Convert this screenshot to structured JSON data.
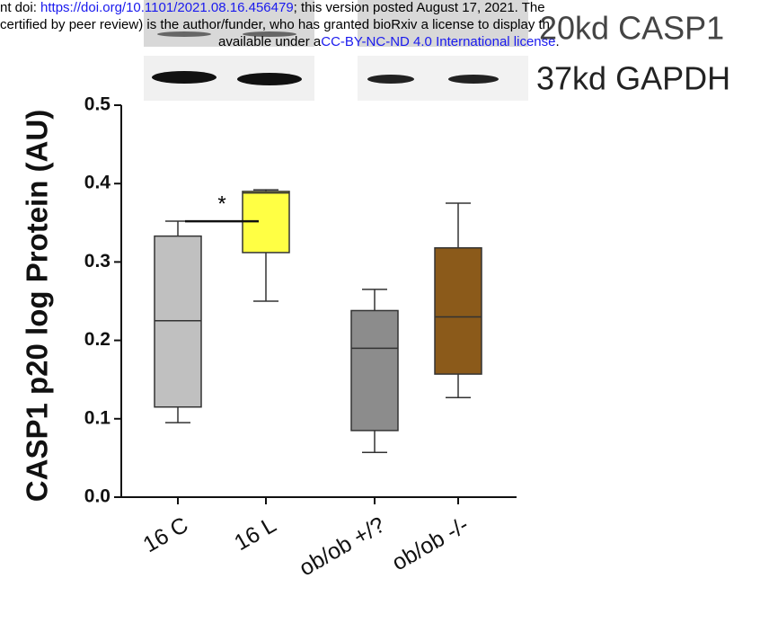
{
  "header": {
    "line1": [
      "nt doi: ",
      "https://doi.org/10.1101/2021.08.16.456479",
      "; this version posted August 17, 2021. The"
    ],
    "line2": "certified by peer review) is the author/funder, who has granted bioRxiv a license to display th",
    "line3": [
      "available under a",
      "CC-BY-NC-ND 4.0 International license",
      "."
    ]
  },
  "blot_labels": [
    "20kd CASP1",
    "37kd GAPDH"
  ],
  "chart_data": {
    "type": "box",
    "ylabel": "CASP1 p20 log Protein (AU)",
    "categories": [
      "16 C",
      "16 L",
      "ob/ob +/?",
      "ob/ob -/-"
    ],
    "boxes": [
      {
        "low": 0.095,
        "q1": 0.115,
        "median": 0.225,
        "q3": 0.333,
        "high": 0.352,
        "color": "#c0c0c0"
      },
      {
        "low": 0.25,
        "q1": 0.312,
        "median": 0.388,
        "q3": 0.39,
        "high": 0.392,
        "color": "#ffff44"
      },
      {
        "low": 0.057,
        "q1": 0.085,
        "median": 0.19,
        "q3": 0.238,
        "high": 0.265,
        "color": "#8c8c8c"
      },
      {
        "low": 0.127,
        "q1": 0.157,
        "median": 0.23,
        "q3": 0.318,
        "high": 0.375,
        "color": "#8b5a1a"
      }
    ],
    "significance": "*",
    "ylim": [
      0,
      0.5
    ],
    "yticks": [
      {
        "value": 0,
        "label": "0.0"
      },
      0.1,
      0.2,
      0.3,
      0.4,
      0.5
    ]
  }
}
